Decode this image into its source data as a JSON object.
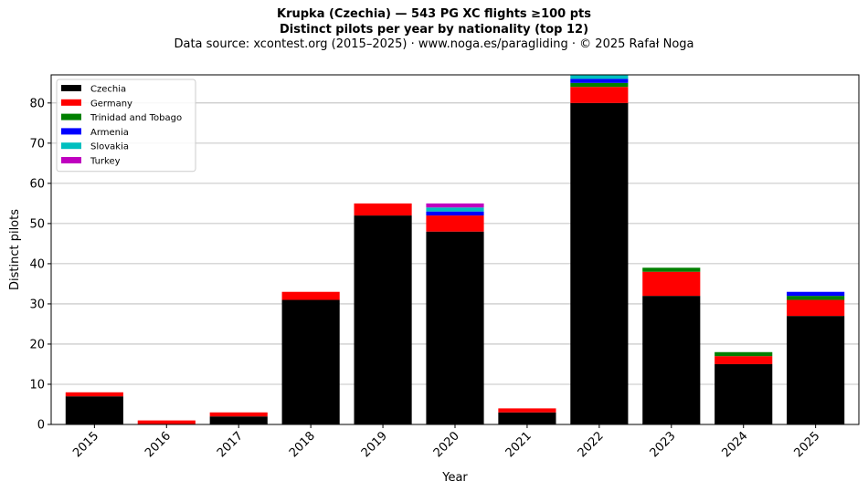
{
  "chart_data": {
    "type": "bar",
    "stacked": true,
    "title": "Krupka (Czechia)  —  543 PG XC flights ≥100 pts",
    "subtitle": "Distinct pilots per year by nationality (top 12)",
    "source": "Data source: xcontest.org (2015–2025)  ·  www.noga.es/paragliding  ·  © 2025 Rafał Noga",
    "xlabel": "Year",
    "ylabel": "Distinct pilots",
    "ylim": [
      0,
      87
    ],
    "yticks": [
      0,
      10,
      20,
      30,
      40,
      50,
      60,
      70,
      80
    ],
    "grid": "horizontal",
    "legend_position": "top-left",
    "categories": [
      "2015",
      "2016",
      "2017",
      "2018",
      "2019",
      "2020",
      "2021",
      "2022",
      "2023",
      "2024",
      "2025"
    ],
    "series": [
      {
        "name": "Czechia",
        "color": "#000000",
        "values": [
          7,
          0,
          2,
          31,
          52,
          48,
          3,
          80,
          32,
          15,
          27
        ]
      },
      {
        "name": "Germany",
        "color": "#ff0000",
        "values": [
          1,
          1,
          1,
          2,
          3,
          4,
          1,
          4,
          6,
          2,
          4
        ]
      },
      {
        "name": "Trinidad and Tobago",
        "color": "#008000",
        "values": [
          0,
          0,
          0,
          0,
          0,
          0,
          0,
          1,
          1,
          1,
          1
        ]
      },
      {
        "name": "Armenia",
        "color": "#0000ff",
        "values": [
          0,
          0,
          0,
          0,
          0,
          1,
          0,
          1,
          0,
          0,
          1
        ]
      },
      {
        "name": "Slovakia",
        "color": "#00bfbf",
        "values": [
          0,
          0,
          0,
          0,
          0,
          1,
          0,
          1,
          0,
          0,
          0
        ]
      },
      {
        "name": "Turkey",
        "color": "#bf00bf",
        "values": [
          0,
          0,
          0,
          0,
          0,
          1,
          0,
          0,
          0,
          0,
          0
        ]
      }
    ]
  }
}
